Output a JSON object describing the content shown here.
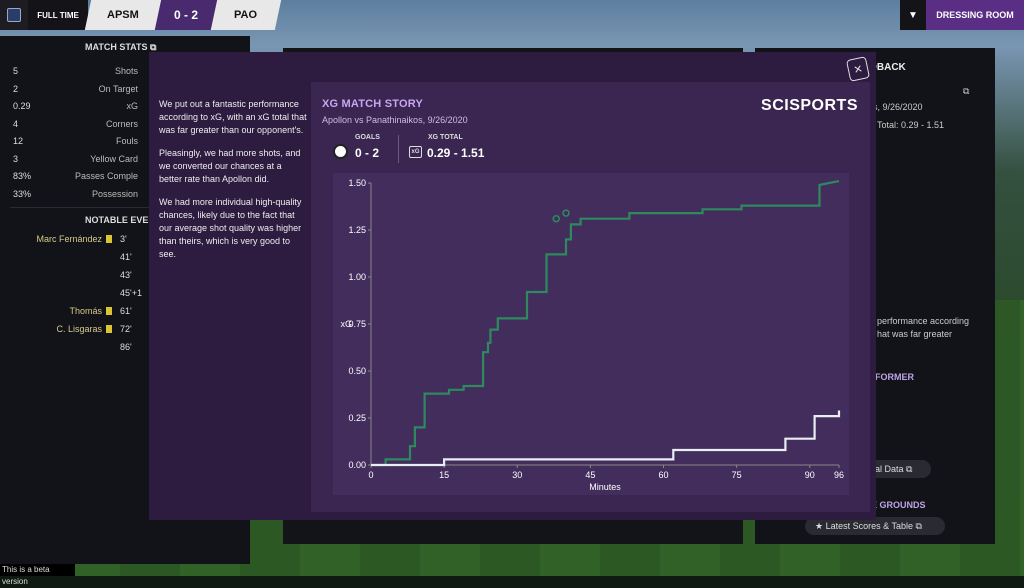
{
  "topbar": {
    "status": "FULL TIME",
    "home": "APSM",
    "score": "0 - 2",
    "away": "PAO",
    "dressing_room": "DRESSING ROOM"
  },
  "match_stats": {
    "title": "MATCH STATS",
    "rows": [
      {
        "value": "5",
        "label": "Shots"
      },
      {
        "value": "2",
        "label": "On Target"
      },
      {
        "value": "0.29",
        "label": "xG"
      },
      {
        "value": "4",
        "label": "Corners"
      },
      {
        "value": "12",
        "label": "Fouls"
      },
      {
        "value": "3",
        "label": "Yellow Card"
      },
      {
        "value": "83%",
        "label": "Passes Comple"
      },
      {
        "value": "33%",
        "label": "Possession"
      }
    ]
  },
  "notable_events": {
    "title": "NOTABLE EVEI",
    "rows": [
      {
        "name": "Marc Fernández",
        "minute": "3'",
        "card": true
      },
      {
        "name": "",
        "minute": "41'",
        "card": false
      },
      {
        "name": "",
        "minute": "43'",
        "card": false
      },
      {
        "name": "",
        "minute": "45'+1",
        "card": false
      },
      {
        "name": "Thomás",
        "minute": "61'",
        "card": true
      },
      {
        "name": "C. Lisgaras",
        "minute": "72'",
        "card": true
      },
      {
        "name": "",
        "minute": "86'",
        "card": false
      }
    ]
  },
  "right_panel": {
    "title": "EDBACK",
    "date": "s, 9/26/2020",
    "xg_total": "Total: 0.29 - 1.51",
    "text1": "performance according",
    "text2": "hat was far greater",
    "former": "FORMER",
    "data_btn": "al Data",
    "grounds": "E GROUNDS",
    "scores_btn": "Latest Scores & Table"
  },
  "overlay": {
    "paragraphs": [
      "We put out a fantastic performance according to xG, with an xG total that was far greater than our opponent's.",
      "Pleasingly, we had more shots, and we converted our chances at a better rate than Apollon did.",
      "We had more individual high-quality chances, likely due to the fact that our average shot quality was higher than theirs, which is very good to see."
    ],
    "title": "XG MATCH STORY",
    "subtitle": "Apollon vs Panathinaikos, 9/26/2020",
    "brand": "SCISPORTS",
    "goals_label": "GOALS",
    "goals_value": "0 - 2",
    "xg_label": "XG TOTAL",
    "xg_value": "0.29 - 1.51"
  },
  "chart_data": {
    "type": "line",
    "xlabel": "Minutes",
    "ylabel": "xG",
    "xlim": [
      0,
      96
    ],
    "ylim": [
      0,
      1.5
    ],
    "x_ticks": [
      0,
      15,
      30,
      45,
      60,
      75,
      90,
      96
    ],
    "y_ticks": [
      "0.00",
      "0.25",
      "0.50",
      "0.75",
      "1.00",
      "1.25",
      "1.50"
    ],
    "series": [
      {
        "color": "#2e8a5e",
        "steps": [
          [
            0,
            0
          ],
          [
            3,
            0
          ],
          [
            3,
            0.03
          ],
          [
            8,
            0.03
          ],
          [
            8,
            0.1
          ],
          [
            9,
            0.1
          ],
          [
            9,
            0.2
          ],
          [
            11,
            0.2
          ],
          [
            11,
            0.38
          ],
          [
            16,
            0.38
          ],
          [
            16,
            0.4
          ],
          [
            19,
            0.4
          ],
          [
            19,
            0.42
          ],
          [
            23,
            0.42
          ],
          [
            23,
            0.6
          ],
          [
            24,
            0.6
          ],
          [
            24,
            0.65
          ],
          [
            24.5,
            0.65
          ],
          [
            24.5,
            0.72
          ],
          [
            26,
            0.72
          ],
          [
            26,
            0.78
          ],
          [
            32,
            0.78
          ],
          [
            32,
            0.92
          ],
          [
            36,
            0.92
          ],
          [
            36,
            1.12
          ],
          [
            40,
            1.12
          ],
          [
            40,
            1.2
          ],
          [
            41,
            1.2
          ],
          [
            41,
            1.28
          ],
          [
            43,
            1.28
          ],
          [
            43,
            1.31
          ],
          [
            53,
            1.31
          ],
          [
            53,
            1.34
          ],
          [
            68,
            1.34
          ],
          [
            68,
            1.36
          ],
          [
            76,
            1.36
          ],
          [
            76,
            1.38
          ],
          [
            92,
            1.38
          ],
          [
            92,
            1.49
          ],
          [
            96,
            1.51
          ]
        ]
      },
      {
        "color": "#e8eef4",
        "steps": [
          [
            0,
            0
          ],
          [
            15,
            0
          ],
          [
            15,
            0.03
          ],
          [
            62,
            0.03
          ],
          [
            62,
            0.08
          ],
          [
            85,
            0.08
          ],
          [
            85,
            0.14
          ],
          [
            91,
            0.14
          ],
          [
            91,
            0.26
          ],
          [
            96,
            0.26
          ],
          [
            96,
            0.29
          ]
        ]
      }
    ],
    "goal_markers": [
      [
        38,
        1.31
      ],
      [
        40,
        1.34
      ]
    ]
  },
  "beta": "This is a beta version"
}
